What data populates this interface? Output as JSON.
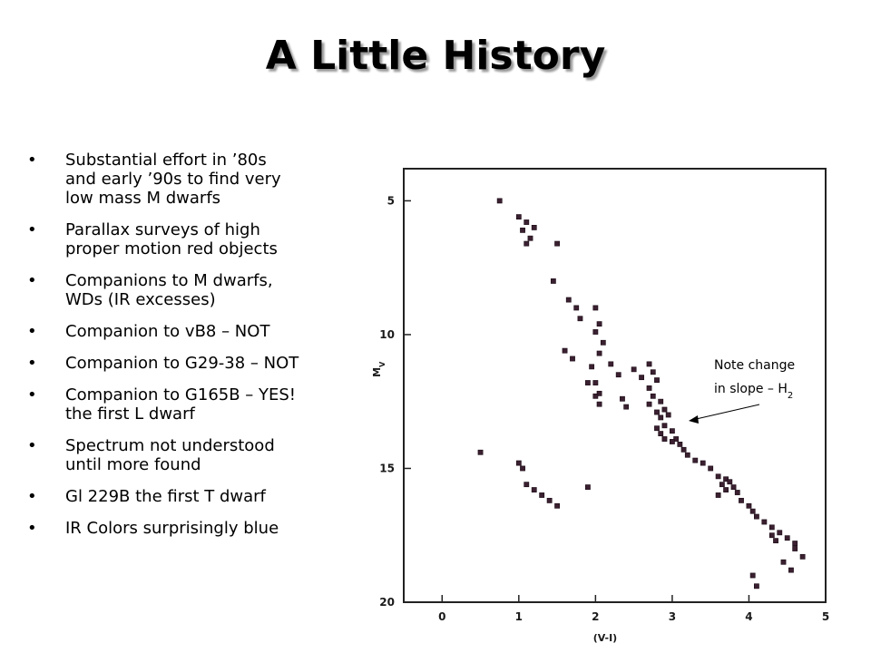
{
  "slide": {
    "title": "A Little History",
    "bullets": [
      "Substantial effort in ’80s\nand early ’90s to find very\nlow mass M dwarfs",
      "Parallax surveys of high\nproper motion red objects",
      "Companions to M dwarfs,\nWDs (IR excesses)",
      "Companion to vB8 – NOT",
      "Companion to G29-38 – NOT",
      "Companion to G165B – YES!\nthe first L dwarf",
      "Spectrum not understood\nuntil more found",
      "Gl 229B the first T dwarf",
      "IR Colors surprisingly blue"
    ],
    "bullet_char": "•",
    "annotation": {
      "line1": "Note change",
      "line2": "in slope – H",
      "subscript": "2"
    }
  },
  "chart_data": {
    "type": "scatter",
    "xlabel": "(V-I)",
    "ylabel": "M_V",
    "xlim": [
      -0.5,
      5
    ],
    "ylim": [
      20,
      3.8
    ],
    "y_inverted": true,
    "x_ticks": [
      0,
      1,
      2,
      3,
      4,
      5
    ],
    "y_ticks": [
      5,
      10,
      15,
      20
    ],
    "grid": false,
    "marker_color": "#3a2030",
    "x": [
      0.75,
      1.0,
      1.1,
      1.2,
      1.05,
      1.15,
      1.1,
      1.5,
      1.45,
      1.65,
      1.75,
      1.8,
      1.6,
      1.7,
      2.0,
      2.05,
      2.0,
      2.1,
      2.05,
      1.95,
      2.0,
      2.05,
      2.2,
      2.3,
      2.5,
      2.6,
      2.35,
      2.4,
      1.9,
      2.0,
      2.05,
      2.7,
      2.75,
      2.7,
      2.8,
      2.85,
      2.9,
      2.7,
      2.75,
      2.8,
      2.85,
      2.9,
      2.95,
      2.8,
      2.85,
      2.9,
      3.0,
      3.05,
      3.1,
      3.15,
      3.0,
      3.2,
      3.3,
      3.4,
      3.5,
      3.6,
      3.7,
      3.65,
      3.75,
      3.7,
      3.8,
      3.85,
      3.6,
      3.9,
      4.0,
      4.05,
      4.1,
      4.2,
      4.3,
      4.4,
      4.5,
      4.6,
      4.45,
      4.55,
      4.3,
      4.35,
      4.6,
      4.7,
      4.05,
      4.1,
      0.5,
      1.0,
      1.05,
      1.1,
      1.2,
      1.3,
      1.4,
      1.5,
      1.9
    ],
    "y": [
      5.0,
      5.6,
      5.8,
      6.0,
      6.1,
      6.4,
      6.6,
      6.6,
      8.0,
      8.7,
      9.0,
      9.4,
      10.6,
      10.9,
      9.0,
      9.6,
      9.9,
      10.3,
      10.7,
      11.2,
      11.8,
      12.2,
      11.1,
      11.5,
      11.3,
      11.6,
      12.4,
      12.7,
      11.8,
      12.3,
      12.6,
      12.0,
      12.3,
      12.6,
      12.9,
      13.1,
      13.4,
      11.1,
      11.4,
      11.7,
      12.5,
      12.8,
      13.0,
      13.5,
      13.7,
      13.9,
      13.6,
      13.9,
      14.1,
      14.3,
      14.0,
      14.5,
      14.7,
      14.8,
      15.0,
      15.3,
      15.4,
      15.6,
      15.5,
      15.8,
      15.7,
      15.9,
      16.0,
      16.2,
      16.4,
      16.6,
      16.8,
      17.0,
      17.2,
      17.4,
      17.6,
      17.8,
      18.5,
      18.8,
      17.5,
      17.7,
      18.0,
      18.3,
      19.0,
      19.4,
      14.4,
      14.8,
      15.0,
      15.6,
      15.8,
      16.0,
      16.2,
      16.4,
      15.7
    ]
  }
}
